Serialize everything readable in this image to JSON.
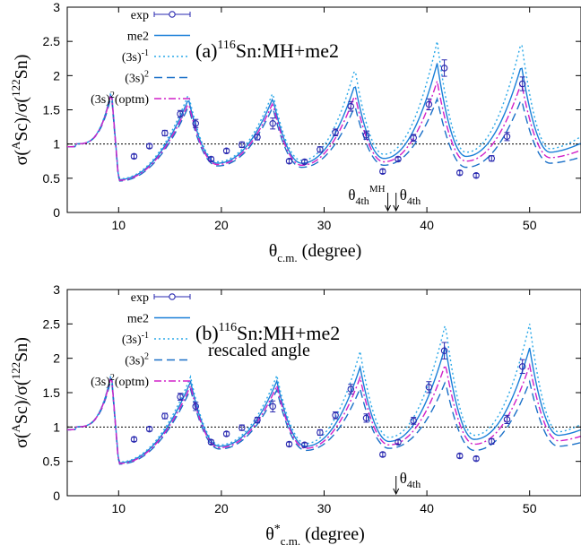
{
  "chart_data": [
    {
      "type": "line",
      "panel_label": "(a)",
      "title_sup": "116",
      "title_text": "Sn:MH+me2",
      "note": "",
      "xlabel_main": "θ",
      "xlabel_sub": "c.m.",
      "xlabel_star": "",
      "xlabel_unit": "(degree)",
      "ylabel": "σ(ASc)/σ(122Sn)",
      "xlim": [
        5,
        55
      ],
      "ylim": [
        0,
        3
      ],
      "xticks": [
        10,
        20,
        30,
        40,
        50
      ],
      "yticks": [
        0,
        0.5,
        1,
        1.5,
        2,
        2.5,
        3
      ],
      "ytick_labels": [
        "0",
        "0.5",
        "1",
        "1.5",
        "2",
        "2.5",
        "3"
      ],
      "reference_line": 1,
      "legend": {
        "placement": "top-left",
        "exp": "exp",
        "me2": "me2",
        "m1": "(3s)-1",
        "sq": "(3s)2",
        "opt": "(3s)2(optm)"
      },
      "arrows": [
        {
          "x": 36.2,
          "label": "θ4thMH"
        },
        {
          "x": 37.0,
          "label": "θ4th"
        }
      ],
      "exp": {
        "x": [
          11.5,
          13.0,
          14.5,
          16.0,
          17.5,
          19.0,
          20.5,
          22.0,
          23.5,
          25.0,
          26.6,
          28.1,
          29.6,
          31.1,
          32.6,
          34.1,
          35.7,
          37.2,
          38.7,
          40.2,
          41.7,
          43.2,
          44.8,
          46.3,
          47.8,
          49.3
        ],
        "y": [
          0.82,
          0.97,
          1.16,
          1.44,
          1.3,
          0.78,
          0.9,
          0.99,
          1.1,
          1.3,
          0.75,
          0.74,
          0.92,
          1.17,
          1.55,
          1.13,
          0.6,
          0.78,
          1.09,
          1.58,
          2.11,
          0.58,
          0.54,
          0.79,
          1.11,
          1.88
        ],
        "err": [
          0.03,
          0.03,
          0.04,
          0.05,
          0.06,
          0.03,
          0.03,
          0.04,
          0.04,
          0.08,
          0.03,
          0.03,
          0.04,
          0.05,
          0.07,
          0.06,
          0.03,
          0.03,
          0.05,
          0.08,
          0.12,
          0.03,
          0.03,
          0.04,
          0.06,
          0.1
        ]
      },
      "peaks_x": [
        9.3,
        16.8,
        25.0,
        33.0,
        41.0,
        49.2
      ],
      "series": [
        {
          "key": "me2",
          "name": "me2",
          "style": "solid",
          "color": "#1a7fd8",
          "peaks": [
            1.78,
            1.66,
            1.67,
            1.87,
            2.18,
            2.15
          ],
          "minima": [
            0.48,
            0.72,
            0.72,
            0.79,
            0.82,
            0.88
          ]
        },
        {
          "key": "m1",
          "name": "(3s)-1",
          "style": "dotted",
          "color": "#2aa8e8",
          "peaks": [
            1.8,
            1.73,
            1.75,
            2.1,
            2.5,
            2.5
          ],
          "minima": [
            0.49,
            0.74,
            0.76,
            0.85,
            0.88,
            0.93
          ]
        },
        {
          "key": "sq",
          "name": "(3s)2",
          "style": "dashed",
          "color": "#1a70c8",
          "peaks": [
            1.72,
            1.55,
            1.54,
            1.56,
            1.66,
            1.66
          ],
          "minima": [
            0.46,
            0.68,
            0.66,
            0.69,
            0.66,
            0.72
          ]
        },
        {
          "key": "opt",
          "name": "(3s)2(optm)",
          "style": "dashdot",
          "color": "#d020c8",
          "peaks": [
            1.76,
            1.6,
            1.6,
            1.72,
            1.92,
            1.9
          ],
          "minima": [
            0.47,
            0.7,
            0.69,
            0.74,
            0.75,
            0.8
          ]
        }
      ]
    },
    {
      "type": "line",
      "panel_label": "(b)",
      "title_sup": "116",
      "title_text": "Sn:MH+me2",
      "note": "rescaled angle",
      "xlabel_main": "θ",
      "xlabel_sub": "c.m.",
      "xlabel_star": "*",
      "xlabel_unit": "(degree)",
      "ylabel": "σ(ASc)/σ(122Sn)",
      "xlim": [
        5,
        55
      ],
      "ylim": [
        0,
        3
      ],
      "xticks": [
        10,
        20,
        30,
        40,
        50
      ],
      "yticks": [
        0,
        0.5,
        1,
        1.5,
        2,
        2.5,
        3
      ],
      "ytick_labels": [
        "0",
        "0.5",
        "1",
        "1.5",
        "2",
        "2.5",
        "3"
      ],
      "reference_line": 1,
      "legend": {
        "placement": "top-left",
        "exp": "exp",
        "me2": "me2",
        "m1": "(3s)-1",
        "sq": "(3s)2",
        "opt": "(3s)2(optm)"
      },
      "arrows": [
        {
          "x": 37.0,
          "label": "θ4th"
        }
      ],
      "exp": {
        "x": [
          11.5,
          13.0,
          14.5,
          16.0,
          17.5,
          19.0,
          20.5,
          22.0,
          23.5,
          25.0,
          26.6,
          28.1,
          29.6,
          31.1,
          32.6,
          34.1,
          35.7,
          37.2,
          38.7,
          40.2,
          41.7,
          43.2,
          44.8,
          46.3,
          47.8,
          49.3
        ],
        "y": [
          0.82,
          0.97,
          1.16,
          1.44,
          1.3,
          0.78,
          0.9,
          0.99,
          1.1,
          1.3,
          0.75,
          0.74,
          0.92,
          1.17,
          1.55,
          1.13,
          0.6,
          0.78,
          1.09,
          1.58,
          2.11,
          0.58,
          0.54,
          0.79,
          1.11,
          1.88
        ],
        "err": [
          0.03,
          0.03,
          0.04,
          0.05,
          0.06,
          0.03,
          0.03,
          0.04,
          0.04,
          0.08,
          0.03,
          0.03,
          0.04,
          0.05,
          0.07,
          0.06,
          0.03,
          0.03,
          0.05,
          0.08,
          0.12,
          0.03,
          0.03,
          0.04,
          0.06,
          0.1
        ]
      },
      "peaks_x": [
        9.3,
        17.0,
        25.4,
        33.5,
        41.8,
        50.0
      ],
      "series": [
        {
          "key": "me2",
          "name": "me2",
          "style": "solid",
          "color": "#1a7fd8",
          "peaks": [
            1.78,
            1.66,
            1.67,
            1.87,
            2.18,
            2.15
          ],
          "minima": [
            0.48,
            0.72,
            0.72,
            0.79,
            0.82,
            0.88
          ]
        },
        {
          "key": "m1",
          "name": "(3s)-1",
          "style": "dotted",
          "color": "#2aa8e8",
          "peaks": [
            1.8,
            1.73,
            1.75,
            2.1,
            2.5,
            2.5
          ],
          "minima": [
            0.49,
            0.74,
            0.76,
            0.85,
            0.88,
            0.93
          ]
        },
        {
          "key": "sq",
          "name": "(3s)2",
          "style": "dashed",
          "color": "#1a70c8",
          "peaks": [
            1.72,
            1.55,
            1.54,
            1.56,
            1.66,
            1.66
          ],
          "minima": [
            0.46,
            0.68,
            0.66,
            0.69,
            0.66,
            0.72
          ]
        },
        {
          "key": "opt",
          "name": "(3s)2(optm)",
          "style": "dashdot",
          "color": "#d020c8",
          "peaks": [
            1.76,
            1.6,
            1.6,
            1.72,
            1.92,
            1.9
          ],
          "minima": [
            0.47,
            0.7,
            0.69,
            0.74,
            0.75,
            0.8
          ]
        }
      ]
    }
  ],
  "colors": {
    "exp": "#2a2ab0",
    "axis": "#000000",
    "reference": "#000000"
  }
}
